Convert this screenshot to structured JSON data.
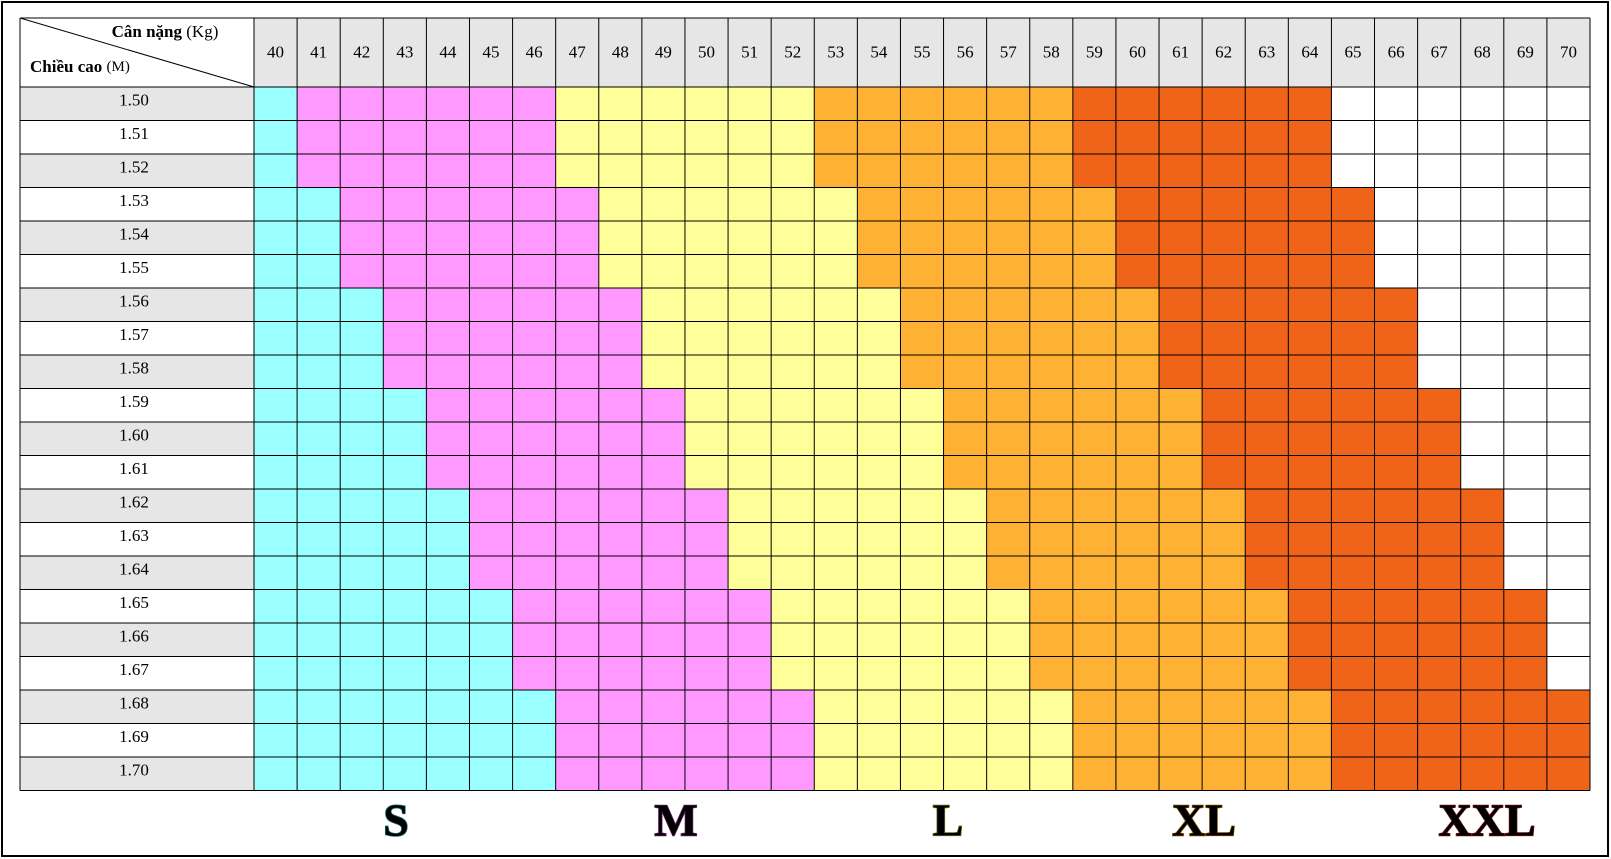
{
  "header": {
    "weight_label": "Cân nặng",
    "weight_unit": "(Kg)",
    "height_label": "Chiều cao",
    "height_unit": "(M)"
  },
  "table": {
    "columns": [
      40,
      41,
      42,
      43,
      44,
      45,
      46,
      47,
      48,
      49,
      50,
      51,
      52,
      53,
      54,
      55,
      56,
      57,
      58,
      59,
      60,
      61,
      62,
      63,
      64,
      65,
      66,
      67,
      68,
      69,
      70
    ],
    "rows": [
      {
        "height": "1.50",
        "starts": [
          40,
          41,
          47,
          53,
          59
        ],
        "end": 64
      },
      {
        "height": "1.51",
        "starts": [
          40,
          41,
          47,
          53,
          59
        ],
        "end": 64
      },
      {
        "height": "1.52",
        "starts": [
          40,
          41,
          47,
          53,
          59
        ],
        "end": 64
      },
      {
        "height": "1.53",
        "starts": [
          40,
          42,
          48,
          54,
          60
        ],
        "end": 65
      },
      {
        "height": "1.54",
        "starts": [
          40,
          42,
          48,
          54,
          60
        ],
        "end": 65
      },
      {
        "height": "1.55",
        "starts": [
          40,
          42,
          48,
          54,
          60
        ],
        "end": 65
      },
      {
        "height": "1.56",
        "starts": [
          40,
          43,
          49,
          55,
          61
        ],
        "end": 66
      },
      {
        "height": "1.57",
        "starts": [
          40,
          43,
          49,
          55,
          61
        ],
        "end": 66
      },
      {
        "height": "1.58",
        "starts": [
          40,
          43,
          49,
          55,
          61
        ],
        "end": 66
      },
      {
        "height": "1.59",
        "starts": [
          40,
          44,
          50,
          56,
          62
        ],
        "end": 67
      },
      {
        "height": "1.60",
        "starts": [
          40,
          44,
          50,
          56,
          62
        ],
        "end": 67
      },
      {
        "height": "1.61",
        "starts": [
          40,
          44,
          50,
          56,
          62
        ],
        "end": 67
      },
      {
        "height": "1.62",
        "starts": [
          40,
          45,
          51,
          57,
          63
        ],
        "end": 68
      },
      {
        "height": "1.63",
        "starts": [
          40,
          45,
          51,
          57,
          63
        ],
        "end": 68
      },
      {
        "height": "1.64",
        "starts": [
          40,
          45,
          51,
          57,
          63
        ],
        "end": 68
      },
      {
        "height": "1.65",
        "starts": [
          40,
          46,
          52,
          58,
          64
        ],
        "end": 69
      },
      {
        "height": "1.66",
        "starts": [
          40,
          46,
          52,
          58,
          64
        ],
        "end": 69
      },
      {
        "height": "1.67",
        "starts": [
          40,
          46,
          52,
          58,
          64
        ],
        "end": 69
      },
      {
        "height": "1.68",
        "starts": [
          40,
          47,
          53,
          59,
          65
        ],
        "end": 70
      },
      {
        "height": "1.69",
        "starts": [
          40,
          47,
          53,
          59,
          65
        ],
        "end": 70
      },
      {
        "height": "1.70",
        "starts": [
          40,
          47,
          53,
          59,
          65
        ],
        "end": 70
      }
    ]
  },
  "legend": [
    {
      "label": "S",
      "color": "#99ffff"
    },
    {
      "label": "M",
      "color": "#ff99ff"
    },
    {
      "label": "L",
      "color": "#ffff99"
    },
    {
      "label": "XL",
      "color": "#ffb133"
    },
    {
      "label": "XXL",
      "color": "#ef6418"
    }
  ]
}
